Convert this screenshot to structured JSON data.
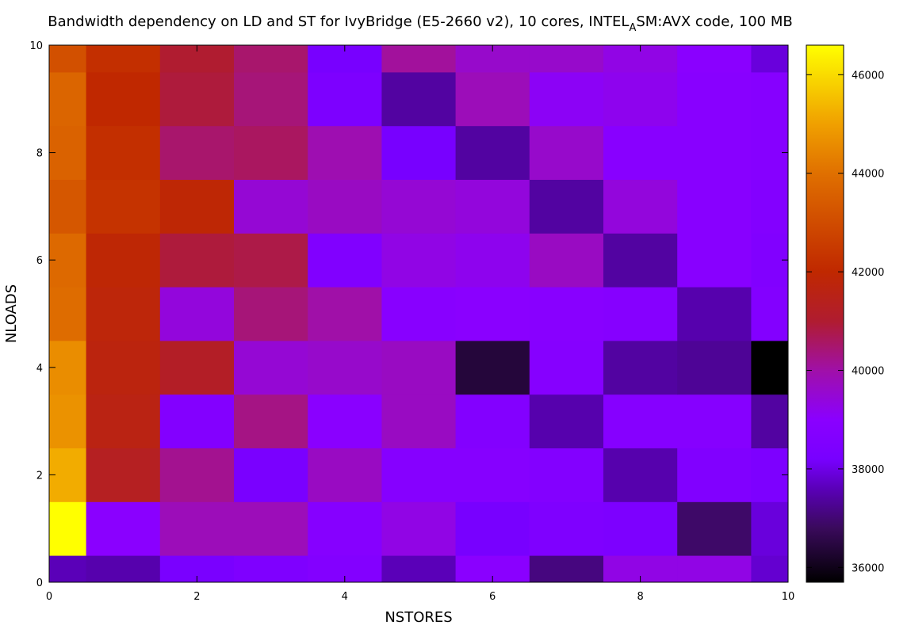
{
  "chart_data": {
    "type": "heatmap",
    "title": {
      "main": "Bandwidth dependency on LD and ST for IvyBridge (E5-2660 v2), 10 cores, INTEL",
      "subscript": "A",
      "rest": "SM:AVX code, 100 MB"
    },
    "xlabel": "NSTORES",
    "ylabel": "NLOADS",
    "xlim": [
      0,
      10
    ],
    "ylim": [
      0,
      10
    ],
    "x_ticks": [
      "0",
      "2",
      "4",
      "6",
      "8",
      "10"
    ],
    "y_ticks": [
      "0",
      "2",
      "4",
      "6",
      "8",
      "10"
    ],
    "colorbar": {
      "range": [
        35700,
        46600
      ],
      "ticks": [
        "36000",
        "38000",
        "40000",
        "42000",
        "44000",
        "46000"
      ],
      "palette": [
        {
          "value": 35700,
          "color": "#000000"
        },
        {
          "value": 36800,
          "color": "#3a0a5c"
        },
        {
          "value": 37600,
          "color": "#5a00b8"
        },
        {
          "value": 38200,
          "color": "#7800ff"
        },
        {
          "value": 39000,
          "color": "#8a00ff"
        },
        {
          "value": 40000,
          "color": "#a010a8"
        },
        {
          "value": 41000,
          "color": "#b01c30"
        },
        {
          "value": 42000,
          "color": "#c02800"
        },
        {
          "value": 44000,
          "color": "#e07000"
        },
        {
          "value": 45000,
          "color": "#f0a000"
        },
        {
          "value": 46600,
          "color": "#ffff00"
        }
      ]
    },
    "cells": [
      [
        37600,
        37500,
        38300,
        38500,
        38700,
        37600,
        39000,
        37100,
        39300,
        39300,
        37800
      ],
      [
        46600,
        39000,
        39800,
        39800,
        38800,
        39300,
        38200,
        38500,
        38400,
        36900,
        37900
      ],
      [
        45200,
        41300,
        40200,
        38300,
        39700,
        38800,
        38800,
        38700,
        37500,
        38600,
        38400
      ],
      [
        44700,
        41600,
        38700,
        40300,
        39000,
        39700,
        38700,
        37500,
        38800,
        38800,
        37400
      ],
      [
        44600,
        41700,
        41200,
        39500,
        39600,
        39700,
        36400,
        38800,
        37400,
        37300,
        35700
      ],
      [
        43900,
        41800,
        39400,
        40400,
        40000,
        38900,
        39000,
        38900,
        38800,
        37500,
        38700
      ],
      [
        43800,
        41900,
        40900,
        40800,
        38600,
        39300,
        39200,
        39700,
        37400,
        38900,
        38600
      ],
      [
        43300,
        42300,
        41900,
        39500,
        39700,
        39500,
        39400,
        37400,
        39400,
        38900,
        38700
      ],
      [
        43600,
        42200,
        40500,
        40600,
        39900,
        38200,
        37400,
        39600,
        38900,
        38900,
        38800
      ],
      [
        43700,
        42000,
        40900,
        40400,
        38400,
        37400,
        39800,
        39100,
        39200,
        38900,
        38800
      ],
      [
        43100,
        42200,
        41000,
        40500,
        38200,
        40100,
        39600,
        39600,
        39300,
        39000,
        37900
      ]
    ]
  }
}
